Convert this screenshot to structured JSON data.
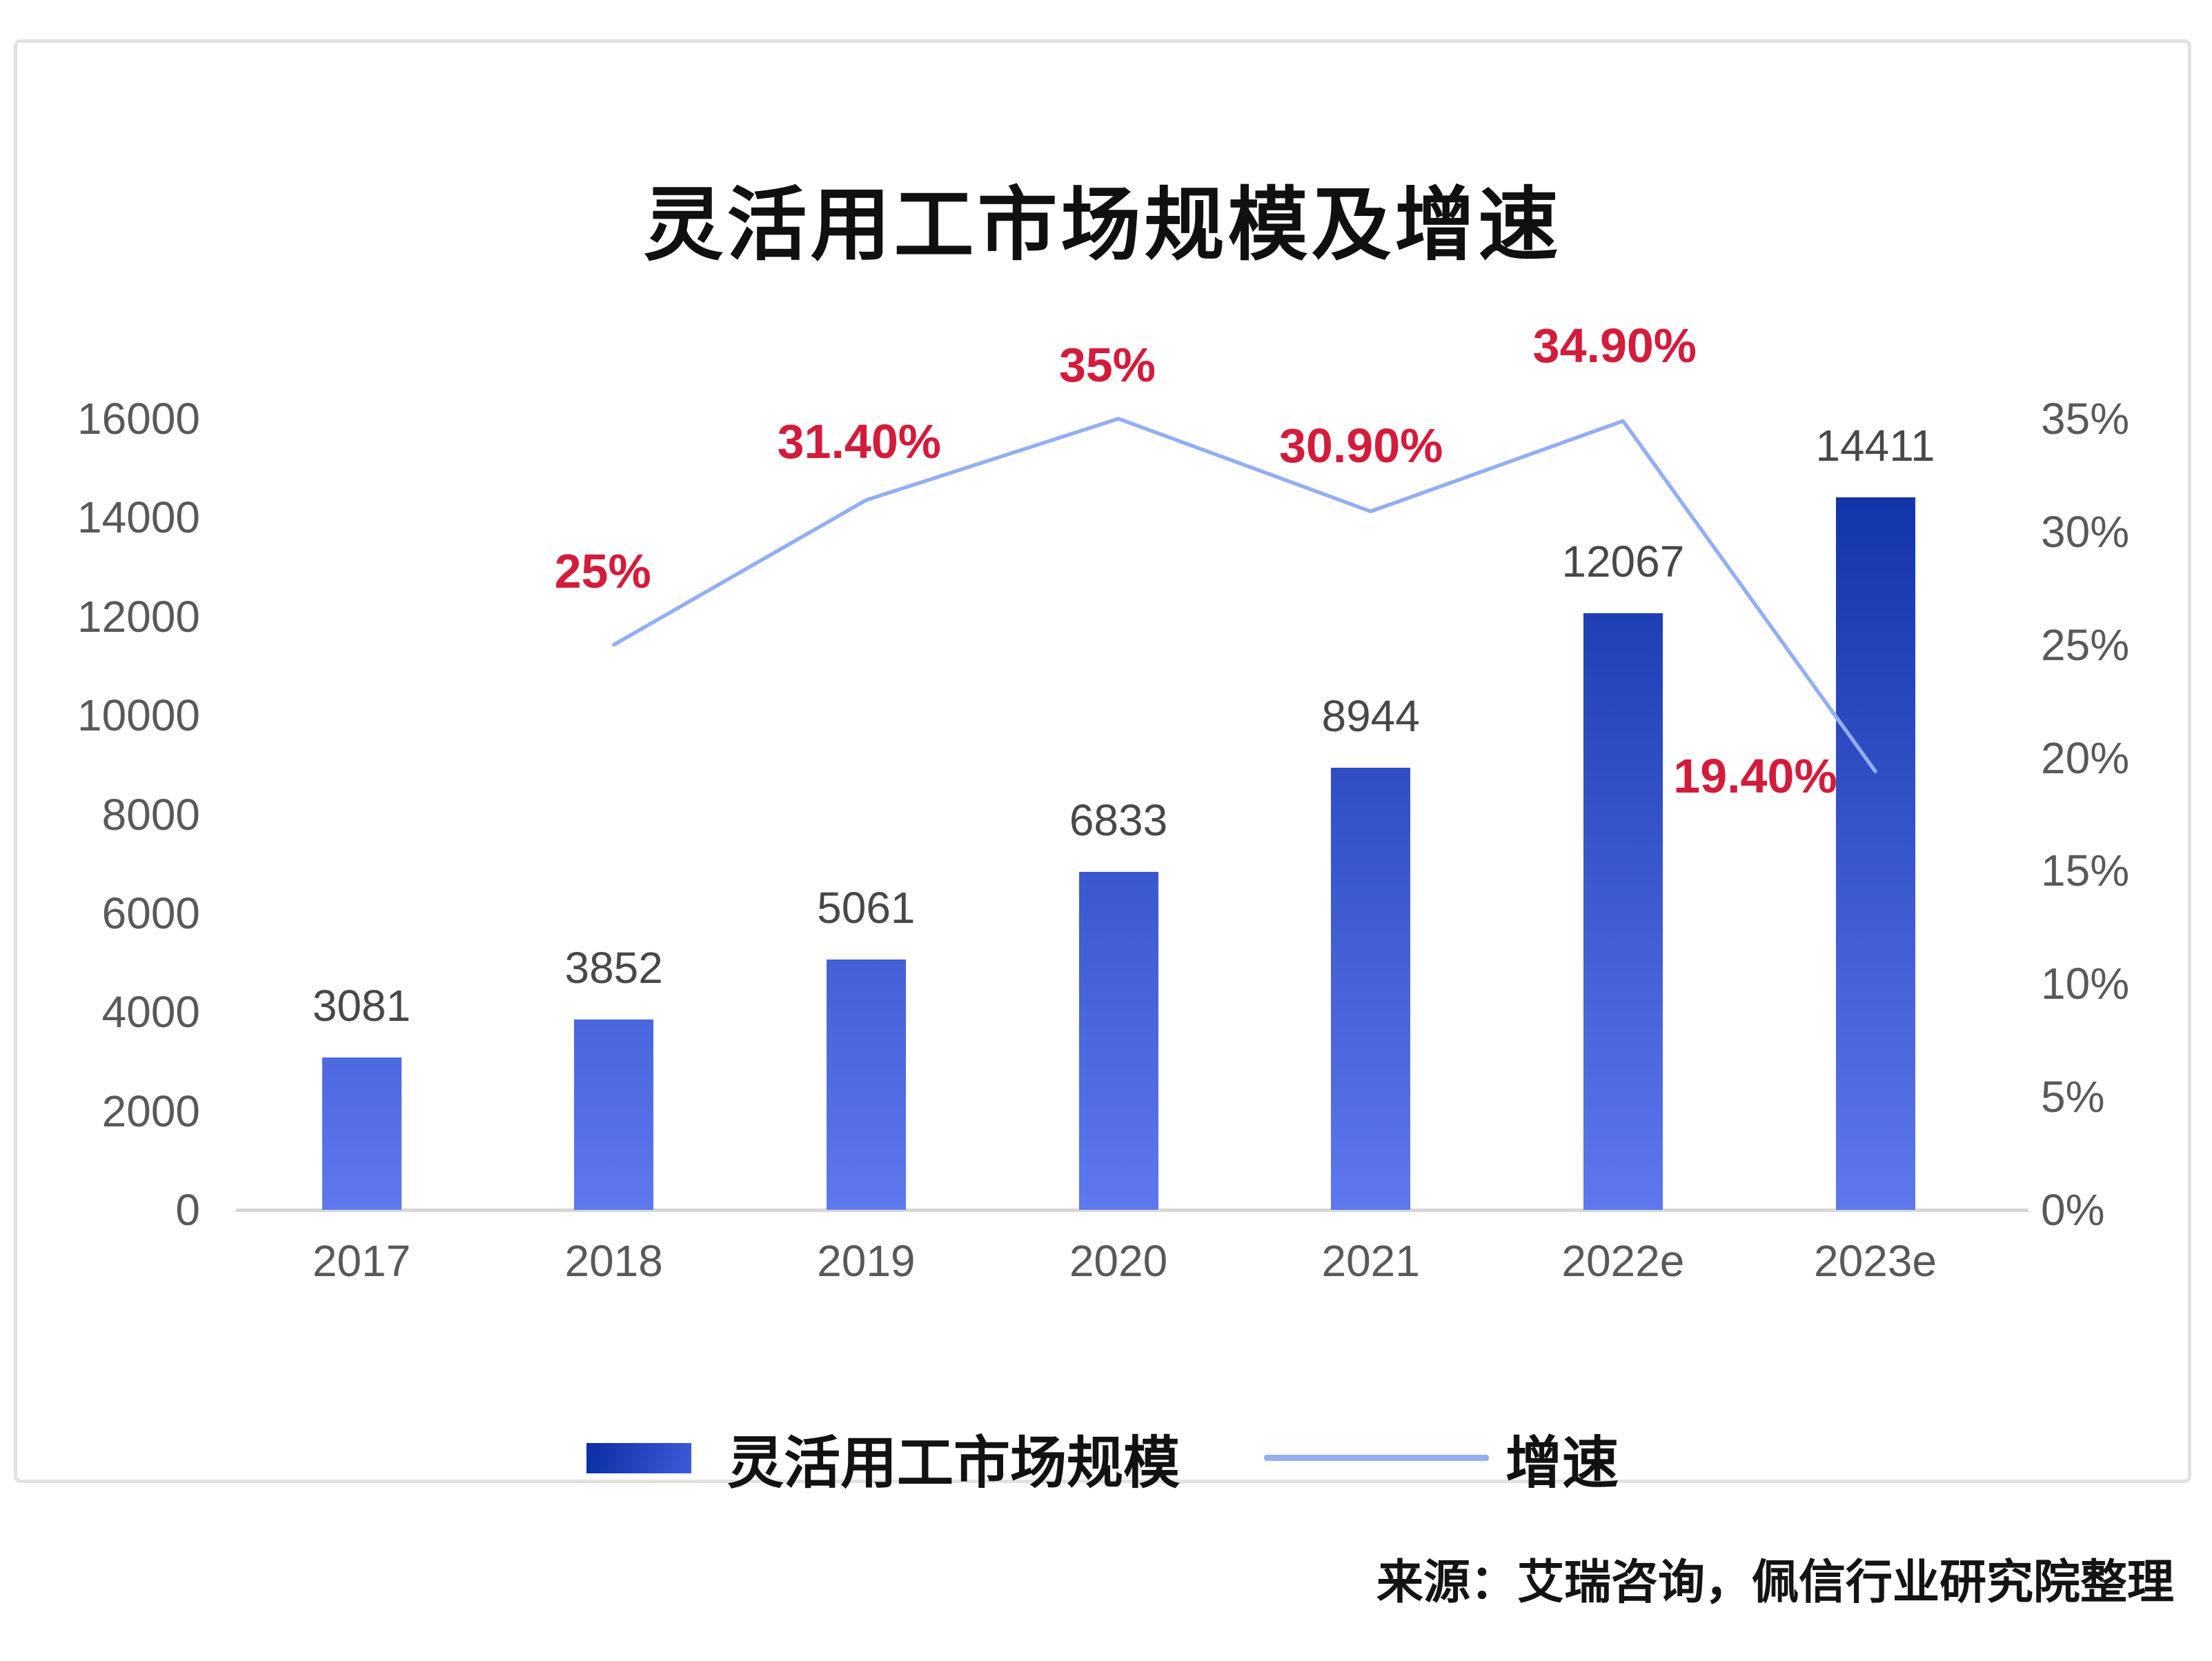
{
  "chart_data": {
    "type": "bar+line",
    "title": "灵活用工市场规模及增速",
    "categories": [
      "2017",
      "2018",
      "2019",
      "2020",
      "2021",
      "2022e",
      "2023e"
    ],
    "series": [
      {
        "name": "灵活用工市场规模",
        "type": "bar",
        "values": [
          3081,
          3852,
          5061,
          6833,
          8944,
          12067,
          14411
        ],
        "value_labels": [
          "3081",
          "3852",
          "5061",
          "6833",
          "8944",
          "12067",
          "14411"
        ],
        "bar_gradient_top": "#0A2DA2",
        "bar_gradient_bottom": "#5E78EE",
        "value_label_color": "#484848"
      },
      {
        "name": "增速",
        "type": "line",
        "values": [
          null,
          25,
          31.4,
          35,
          30.9,
          34.9,
          19.4
        ],
        "point_labels": [
          null,
          "25%",
          "31.40%",
          "35%",
          "30.90%",
          "34.90%",
          "19.40%"
        ],
        "line_color": "#93AEF2",
        "point_label_color": "#D31C3C"
      }
    ],
    "left_axis": {
      "min": 0,
      "max": 16000,
      "tick_step": 2000,
      "ticks": [
        "16000",
        "14000",
        "12000",
        "10000",
        "8000",
        "6000",
        "4000",
        "2000",
        "0"
      ],
      "text_color": "#595959"
    },
    "right_axis": {
      "min": "0%",
      "max": "35%",
      "tick_step": "5%",
      "ticks": [
        "35%",
        "30%",
        "25%",
        "20%",
        "15%",
        "10%",
        "5%",
        "0%"
      ],
      "text_color": "#595959"
    },
    "axis_line_color": "#D6D6D8",
    "legend_position": "bottom",
    "grid": "off",
    "source": "来源：艾瑞咨询，佩信行业研究院整理"
  },
  "card": {
    "border_color": "#E1E1E3"
  }
}
